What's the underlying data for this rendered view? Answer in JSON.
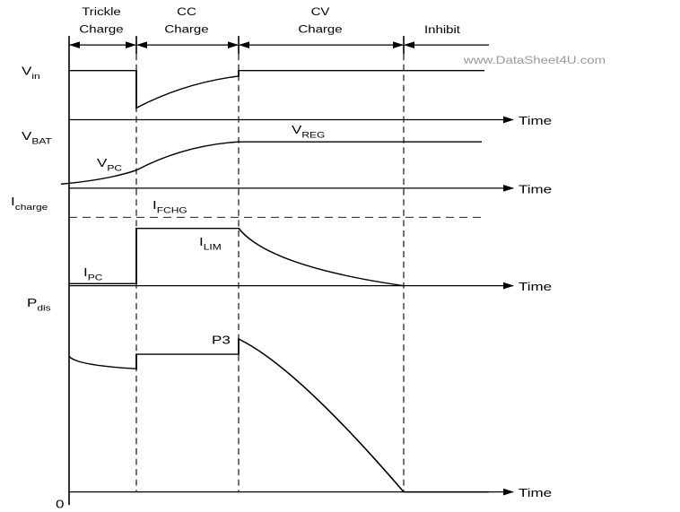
{
  "phases": [
    {
      "line1": "Trickle",
      "line2": "Charge"
    },
    {
      "line1": "CC",
      "line2": "Charge"
    },
    {
      "line1": "CV",
      "line2": "Charge"
    },
    {
      "line1": "Inhibit"
    }
  ],
  "watermark": "www.DataSheet4U.com",
  "time_label": "Time",
  "labels": {
    "vin": {
      "base": "V",
      "sub": "in"
    },
    "vbat": {
      "base": "V",
      "sub": "BAT"
    },
    "vreg": {
      "base": "V",
      "sub": "REG"
    },
    "vpc": {
      "base": "V",
      "sub": "PC"
    },
    "icharge": {
      "base": "I",
      "sub": "charge"
    },
    "ifchg": {
      "base": "I",
      "sub": "FCHG"
    },
    "ilim": {
      "base": "I",
      "sub": "LIM"
    },
    "ipc": {
      "base": "I",
      "sub": "PC"
    },
    "pdis": {
      "base": "P",
      "sub": "dis"
    },
    "p3": "P3",
    "zero": "0"
  }
}
